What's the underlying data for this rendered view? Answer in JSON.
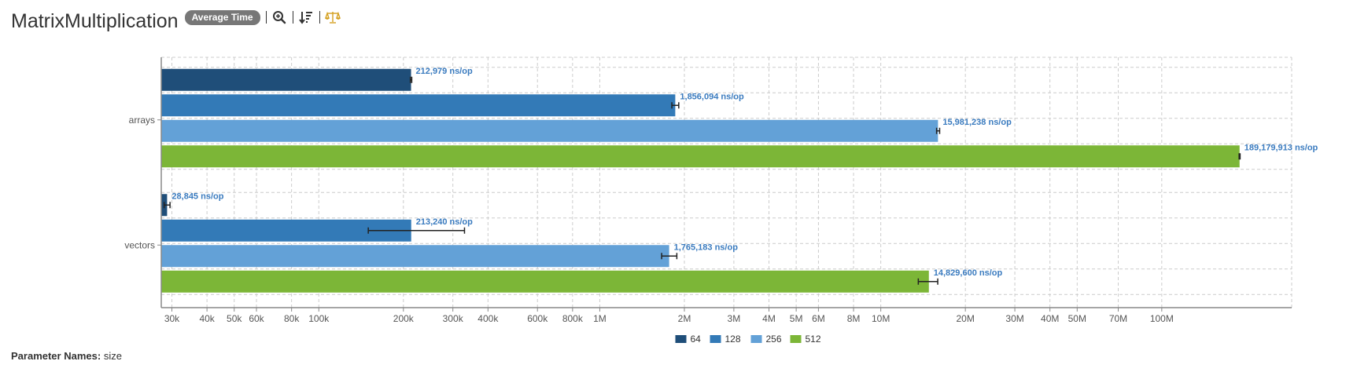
{
  "header": {
    "title": "MatrixMultiplication",
    "mode_badge": "Average Time"
  },
  "toolbar": {
    "icons": [
      "zoom-icon",
      "sort-icon",
      "balance-icon"
    ],
    "balance_color": "#d4a020"
  },
  "footer": {
    "label": "Parameter Names:",
    "value": "size"
  },
  "colors": {
    "64": "#1f4e79",
    "128": "#337ab7",
    "256": "#63a1d7",
    "512": "#7cb637",
    "label": "#3a7bbf",
    "grid": "#cccccc"
  },
  "chart_data": {
    "type": "bar",
    "orientation": "horizontal",
    "scale": "log",
    "xlim": [
      27500,
      290000000
    ],
    "grid": true,
    "legend_position": "bottom",
    "categories": [
      "arrays",
      "vectors"
    ],
    "series": [
      {
        "name": "64",
        "values": [
          212979,
          28845
        ],
        "labels": [
          "212,979 ns/op",
          "28,845 ns/op"
        ],
        "err_low": [
          211800,
          28150
        ],
        "err_high": [
          214200,
          29550
        ]
      },
      {
        "name": "128",
        "values": [
          1856094,
          213240
        ],
        "labels": [
          "1,856,094 ns/op",
          "213,240 ns/op"
        ],
        "err_low": [
          1805000,
          150000
        ],
        "err_high": [
          1910000,
          330000
        ]
      },
      {
        "name": "256",
        "values": [
          15981238,
          1765183
        ],
        "labels": [
          "15,981,238 ns/op",
          "1,765,183 ns/op"
        ],
        "err_low": [
          15800000,
          1660000
        ],
        "err_high": [
          16200000,
          1880000
        ]
      },
      {
        "name": "512",
        "values": [
          189179913,
          14829600
        ],
        "labels": [
          "189,179,913 ns/op",
          "14,829,600 ns/op"
        ],
        "err_low": [
          188500000,
          13600000
        ],
        "err_high": [
          190000000,
          15950000
        ]
      }
    ],
    "ticks": [
      {
        "v": 30000,
        "label": "30k"
      },
      {
        "v": 40000,
        "label": "40k"
      },
      {
        "v": 50000,
        "label": "50k"
      },
      {
        "v": 60000,
        "label": "60k"
      },
      {
        "v": 80000,
        "label": "80k"
      },
      {
        "v": 100000,
        "label": "100k"
      },
      {
        "v": 200000,
        "label": "200k"
      },
      {
        "v": 300000,
        "label": "300k"
      },
      {
        "v": 400000,
        "label": "400k"
      },
      {
        "v": 600000,
        "label": "600k"
      },
      {
        "v": 800000,
        "label": "800k"
      },
      {
        "v": 1000000,
        "label": "1M"
      },
      {
        "v": 2000000,
        "label": "2M"
      },
      {
        "v": 3000000,
        "label": "3M"
      },
      {
        "v": 4000000,
        "label": "4M"
      },
      {
        "v": 5000000,
        "label": "5M"
      },
      {
        "v": 6000000,
        "label": "6M"
      },
      {
        "v": 8000000,
        "label": "8M"
      },
      {
        "v": 10000000,
        "label": "10M"
      },
      {
        "v": 20000000,
        "label": "20M"
      },
      {
        "v": 30000000,
        "label": "30M"
      },
      {
        "v": 40000000,
        "label": "40M"
      },
      {
        "v": 50000000,
        "label": "50M"
      },
      {
        "v": 70000000,
        "label": "70M"
      },
      {
        "v": 100000000,
        "label": "100M"
      }
    ]
  }
}
